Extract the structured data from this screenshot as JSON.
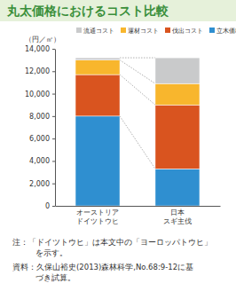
{
  "chart_data": {
    "type": "bar",
    "title": "丸太価格におけるコスト比較",
    "y_label": "（円／㎥）",
    "categories": [
      "オーストリア\nドイツトウヒ",
      "日本\nスギ主伐"
    ],
    "series": [
      {
        "name": "立木価格",
        "color": "#2f8fd0",
        "values": [
          8000,
          3300
        ]
      },
      {
        "name": "伐出コスト",
        "color": "#d9541f",
        "values": [
          3700,
          5700
        ]
      },
      {
        "name": "運材コスト",
        "color": "#f8b62d",
        "values": [
          1300,
          1900
        ]
      },
      {
        "name": "流通コスト",
        "color": "#c9cacb",
        "values": [
          200,
          2300
        ]
      }
    ],
    "stacked": true,
    "legend": "top",
    "ylim": [
      0,
      14000
    ],
    "yticks": [
      0,
      {
        "value": 2000,
        "label": "2,000"
      },
      {
        "value": 4000,
        "label": "4,000"
      },
      {
        "value": 6000,
        "label": "6,000"
      },
      {
        "value": 8000,
        "label": "8,000"
      },
      {
        "value": 10000,
        "label": "10,000"
      },
      {
        "value": 12000,
        "label": "12,000"
      },
      {
        "value": 14000,
        "label": "14,000"
      }
    ],
    "annotations": [
      "注：「ドイツトウヒ」は本文中の「ヨーロッパトウヒ」\nを示す。",
      "資料：久保山裕史(2013)森林科学,No.68:9-12に基\nづき試算。"
    ]
  }
}
